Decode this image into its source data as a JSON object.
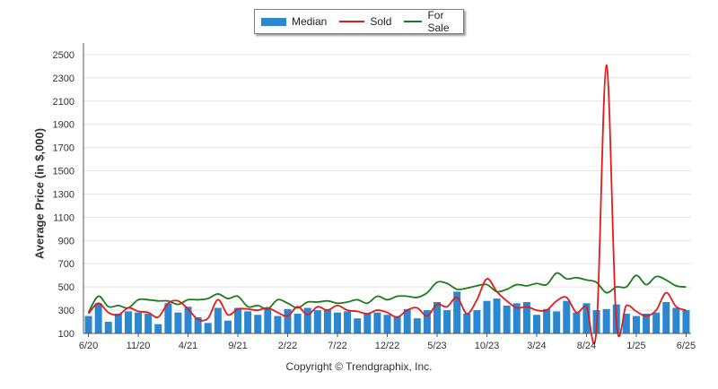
{
  "chart_data": {
    "type": "bar",
    "ylabel": "Average Price (in $,000)",
    "copyright": "Copyright © Trendgraphix, Inc.",
    "ylim": [
      100,
      2600
    ],
    "yticks": [
      100,
      300,
      500,
      700,
      900,
      1100,
      1300,
      1500,
      1700,
      1900,
      2100,
      2300,
      2500
    ],
    "x_tick_labels": [
      {
        "index": 0,
        "label": "6/20"
      },
      {
        "index": 5,
        "label": "11/20"
      },
      {
        "index": 10,
        "label": "4/21"
      },
      {
        "index": 15,
        "label": "9/21"
      },
      {
        "index": 20,
        "label": "2/22"
      },
      {
        "index": 25,
        "label": "7/22"
      },
      {
        "index": 30,
        "label": "12/22"
      },
      {
        "index": 35,
        "label": "5/23"
      },
      {
        "index": 40,
        "label": "10/23"
      },
      {
        "index": 45,
        "label": "3/24"
      },
      {
        "index": 50,
        "label": "8/24"
      },
      {
        "index": 55,
        "label": "1/25"
      },
      {
        "index": 60,
        "label": "6/25"
      }
    ],
    "grid": true,
    "legend_position": "top-center",
    "series": [
      {
        "name": "Median",
        "kind": "bar",
        "color": "#2b87cf",
        "values": [
          250,
          360,
          200,
          270,
          290,
          280,
          270,
          180,
          360,
          280,
          330,
          240,
          190,
          320,
          210,
          320,
          290,
          260,
          310,
          250,
          310,
          270,
          320,
          300,
          310,
          280,
          290,
          230,
          270,
          280,
          260,
          250,
          310,
          230,
          300,
          370,
          300,
          460,
          270,
          300,
          380,
          400,
          340,
          360,
          370,
          260,
          310,
          290,
          380,
          280,
          360,
          300,
          310,
          350,
          270,
          250,
          270,
          280,
          370,
          320,
          300
        ]
      },
      {
        "name": "Sold",
        "kind": "line",
        "color": "#e41b1b",
        "values": [
          270,
          360,
          280,
          260,
          320,
          290,
          280,
          240,
          360,
          380,
          310,
          220,
          230,
          390,
          260,
          310,
          310,
          300,
          320,
          280,
          250,
          330,
          260,
          330,
          300,
          340,
          300,
          290,
          270,
          300,
          280,
          240,
          300,
          320,
          250,
          350,
          330,
          410,
          270,
          390,
          570,
          460,
          380,
          320,
          330,
          300,
          300,
          380,
          410,
          280,
          330,
          130,
          2410,
          200,
          340,
          290,
          250,
          300,
          450,
          330,
          300
        ]
      },
      {
        "name": "For Sale",
        "kind": "line",
        "color": "#1e7a1e",
        "values": [
          280,
          420,
          330,
          340,
          320,
          390,
          390,
          380,
          380,
          350,
          390,
          390,
          400,
          440,
          400,
          420,
          330,
          340,
          310,
          390,
          360,
          320,
          370,
          370,
          380,
          360,
          370,
          390,
          360,
          420,
          390,
          420,
          420,
          410,
          450,
          540,
          530,
          480,
          490,
          510,
          520,
          460,
          480,
          520,
          510,
          530,
          520,
          620,
          570,
          580,
          560,
          540,
          450,
          500,
          500,
          600,
          520,
          590,
          560,
          510,
          500
        ]
      }
    ]
  }
}
